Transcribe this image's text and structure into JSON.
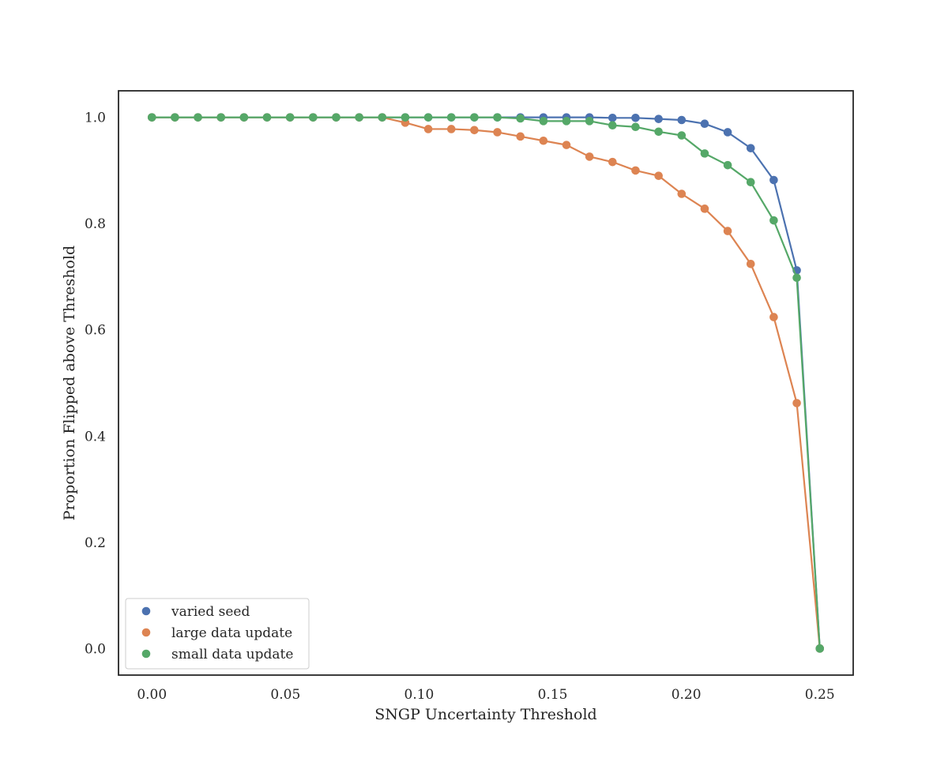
{
  "chart_data": {
    "type": "line",
    "title": "",
    "xlabel": "SNGP Uncertainty Threshold",
    "ylabel": "Proportion Flipped above Threshold",
    "xlim": [
      -0.0125,
      0.2625
    ],
    "ylim": [
      -0.05,
      1.05
    ],
    "xticks": [
      "0.00",
      "0.05",
      "0.10",
      "0.15",
      "0.20",
      "0.25"
    ],
    "yticks": [
      "0.0",
      "0.2",
      "0.4",
      "0.6",
      "0.8",
      "1.0"
    ],
    "grid": false,
    "legend_position": "lower-left",
    "x": [
      0.0,
      0.00862,
      0.01724,
      0.02586,
      0.03448,
      0.0431,
      0.05172,
      0.06034,
      0.06897,
      0.07759,
      0.08621,
      0.09483,
      0.10345,
      0.11207,
      0.12069,
      0.12931,
      0.13793,
      0.14655,
      0.15517,
      0.16379,
      0.17241,
      0.18103,
      0.18966,
      0.19828,
      0.2069,
      0.21552,
      0.22414,
      0.23276,
      0.24138,
      0.25
    ],
    "series": [
      {
        "name": "varied seed",
        "color": "#4c72b0",
        "values": [
          1.0,
          1.0,
          1.0,
          1.0,
          1.0,
          1.0,
          1.0,
          1.0,
          1.0,
          1.0,
          1.0,
          1.0,
          1.0,
          1.0,
          1.0,
          1.0,
          1.0,
          1.0,
          1.0,
          1.0,
          0.999,
          0.999,
          0.997,
          0.995,
          0.988,
          0.972,
          0.942,
          0.882,
          0.712,
          0.0
        ]
      },
      {
        "name": "large data update",
        "color": "#dd8452",
        "values": [
          1.0,
          1.0,
          1.0,
          1.0,
          1.0,
          1.0,
          1.0,
          1.0,
          1.0,
          1.0,
          1.0,
          0.99,
          0.978,
          0.978,
          0.976,
          0.972,
          0.964,
          0.956,
          0.948,
          0.926,
          0.916,
          0.9,
          0.89,
          0.856,
          0.828,
          0.786,
          0.724,
          0.624,
          0.462,
          0.0
        ]
      },
      {
        "name": "small data update",
        "color": "#55a868",
        "values": [
          1.0,
          1.0,
          1.0,
          1.0,
          1.0,
          1.0,
          1.0,
          1.0,
          1.0,
          1.0,
          1.0,
          1.0,
          1.0,
          1.0,
          1.0,
          1.0,
          0.998,
          0.993,
          0.993,
          0.993,
          0.985,
          0.982,
          0.973,
          0.966,
          0.932,
          0.91,
          0.878,
          0.806,
          0.698,
          0.0
        ]
      }
    ]
  }
}
